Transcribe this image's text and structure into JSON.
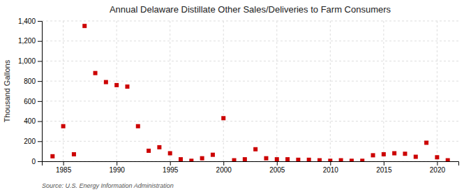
{
  "chart_data": {
    "type": "scatter",
    "title": "Annual Delaware Distillate Other Sales/Deliveries to Farm Consumers",
    "ylabel": "Thousand Gallons",
    "annotations": [
      "Source: U.S. Energy Information Administration"
    ],
    "x": [
      1984,
      1985,
      1986,
      1987,
      1988,
      1989,
      1990,
      1991,
      1992,
      1993,
      1994,
      1995,
      1996,
      1997,
      1998,
      1999,
      2000,
      2001,
      2002,
      2003,
      2004,
      2005,
      2006,
      2007,
      2008,
      2009,
      2010,
      2011,
      2012,
      2013,
      2014,
      2015,
      2016,
      2017,
      2018,
      2019,
      2020,
      2021
    ],
    "values": [
      50,
      350,
      70,
      1350,
      880,
      790,
      760,
      745,
      350,
      105,
      140,
      80,
      20,
      5,
      30,
      65,
      430,
      10,
      20,
      120,
      30,
      20,
      20,
      15,
      15,
      10,
      5,
      10,
      5,
      5,
      60,
      70,
      80,
      75,
      45,
      185,
      40,
      10
    ],
    "color": "#cc0000",
    "marker": "square",
    "grid": true,
    "xlim": [
      1983,
      2022
    ],
    "xticks": [
      1985,
      1990,
      1995,
      2000,
      2005,
      2010,
      2015,
      2020
    ],
    "ylim": [
      0,
      1400
    ],
    "yticks": [
      0,
      200,
      400,
      600,
      800,
      {
        "value": 1000,
        "label": "1,000"
      },
      {
        "value": 1200,
        "label": "1,200"
      },
      {
        "value": 1400,
        "label": "1,400"
      }
    ]
  }
}
